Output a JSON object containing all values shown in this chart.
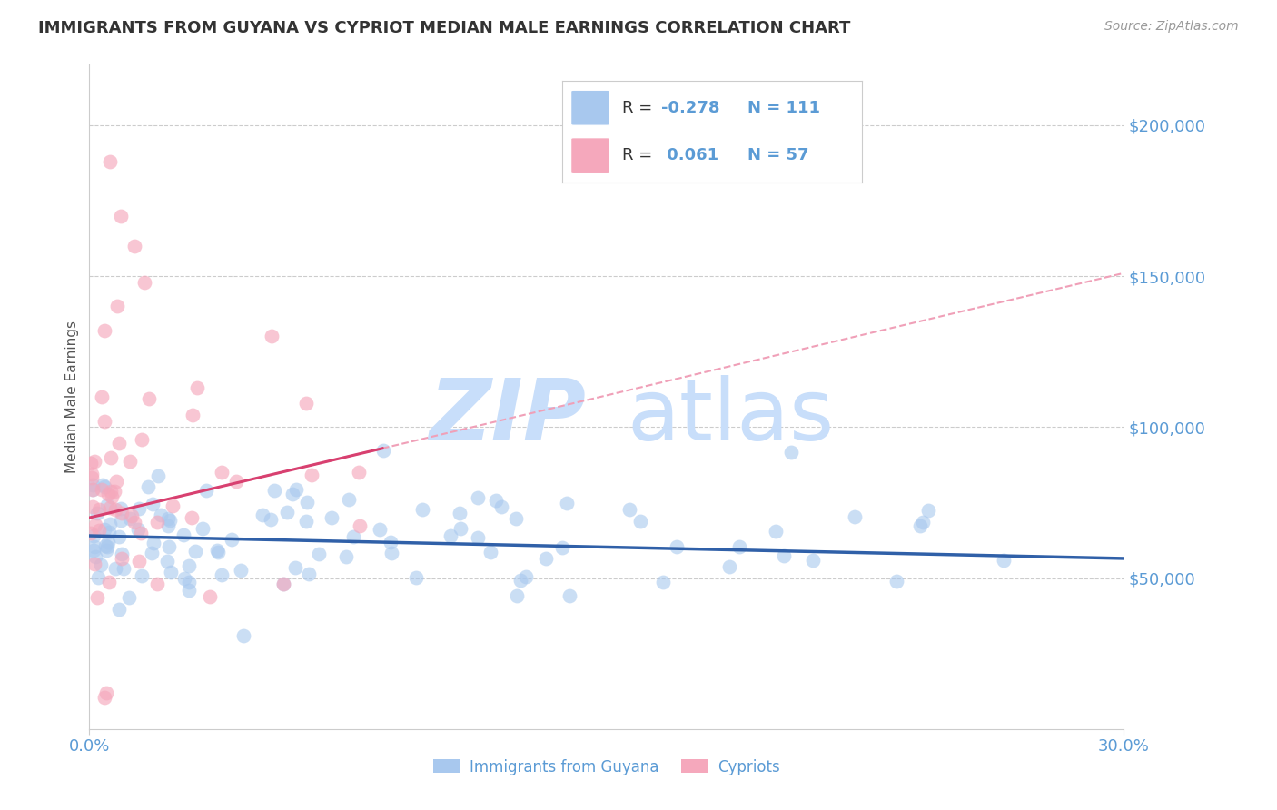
{
  "title": "IMMIGRANTS FROM GUYANA VS CYPRIOT MEDIAN MALE EARNINGS CORRELATION CHART",
  "source": "Source: ZipAtlas.com",
  "ylabel": "Median Male Earnings",
  "xmin": 0.0,
  "xmax": 0.3,
  "ymin": 0,
  "ymax": 220000,
  "blue_color": "#A8C8EE",
  "pink_color": "#F5A8BC",
  "blue_line_color": "#3060A8",
  "pink_line_color": "#D84070",
  "pink_dash_color": "#F0A0B8",
  "axis_label_color": "#5B9BD5",
  "title_color": "#333333",
  "grid_color": "#CCCCCC",
  "watermark_zip": "ZIP",
  "watermark_atlas": "atlas",
  "watermark_color": "#C8DEFA",
  "legend_R_blue": "-0.278",
  "legend_N_blue": "111",
  "legend_R_pink": "0.061",
  "legend_N_pink": "57",
  "blue_intercept": 64000,
  "blue_slope": -25000,
  "pink_intercept": 70000,
  "pink_slope": 270000
}
